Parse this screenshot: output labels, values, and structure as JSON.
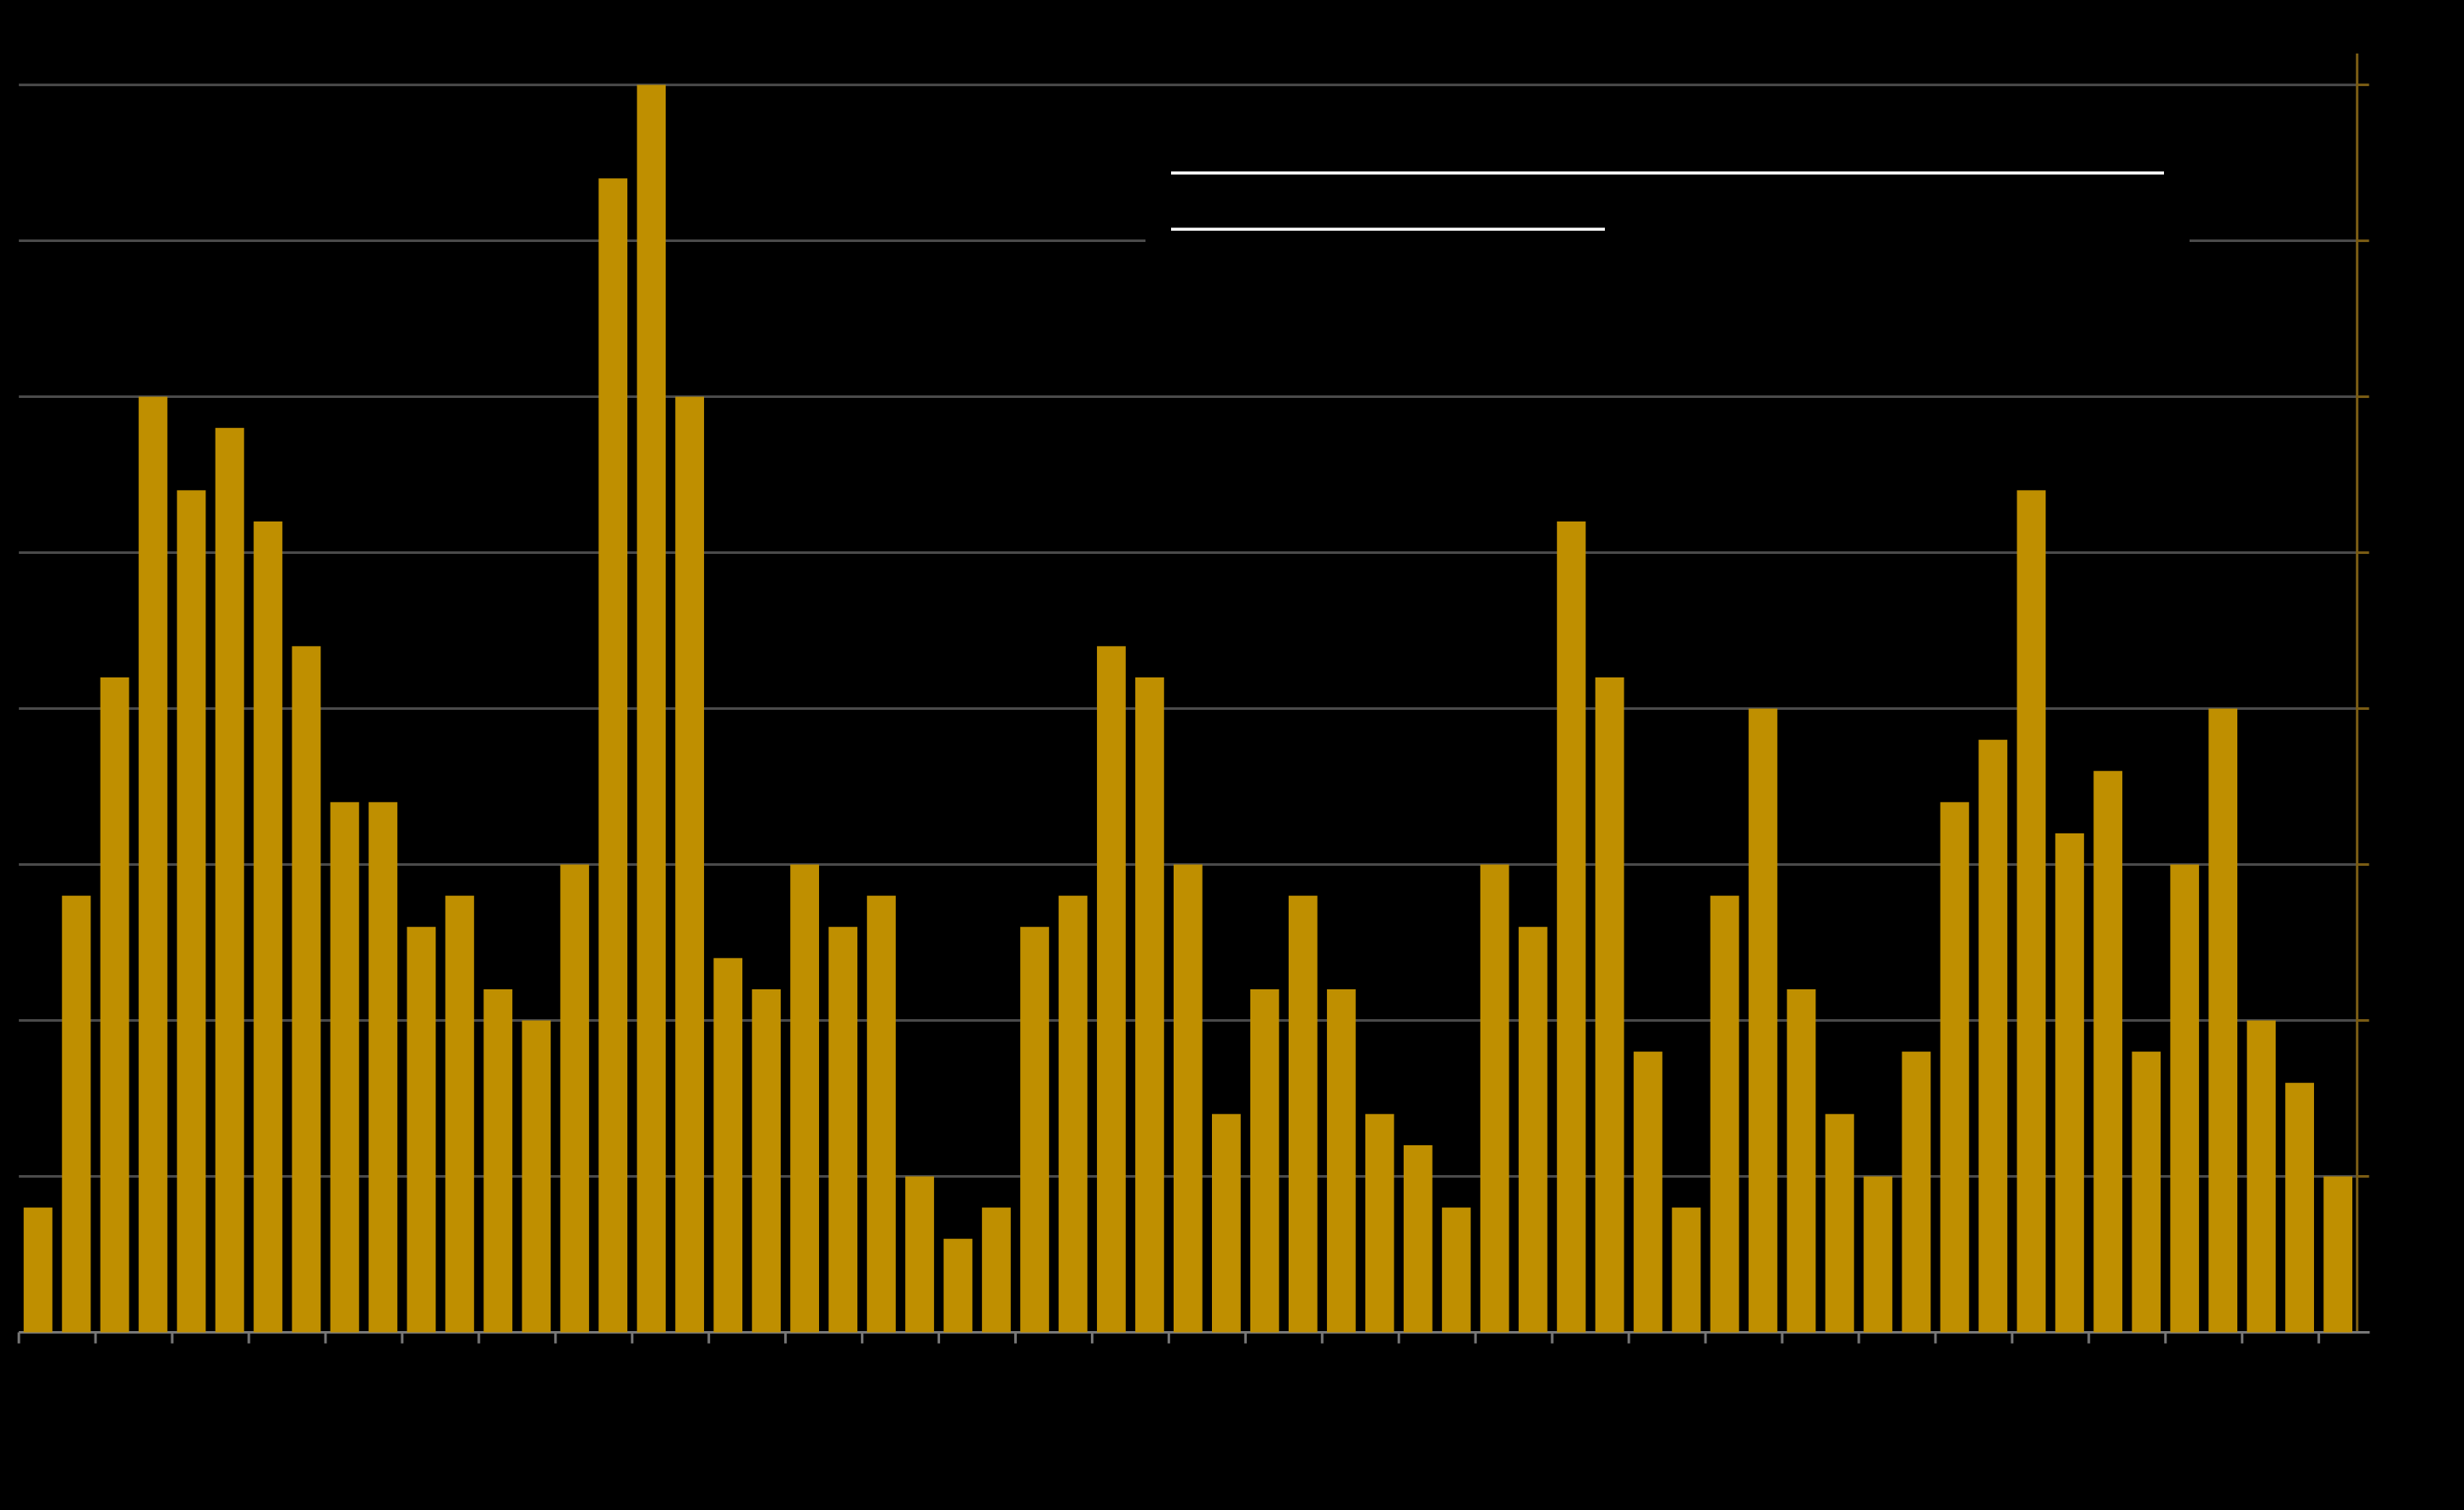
{
  "chart_data": {
    "type": "bar",
    "categories": [
      null,
      null,
      null,
      null,
      null,
      null,
      null,
      null,
      null,
      null,
      null,
      null,
      null,
      null,
      null,
      null,
      null,
      null,
      null,
      null,
      null,
      null,
      null,
      null,
      null,
      null,
      null,
      null,
      null,
      null,
      null,
      null,
      null,
      null,
      null,
      null,
      null,
      null,
      null,
      null,
      null,
      null,
      null,
      null,
      null,
      null,
      null,
      null,
      null,
      null,
      null,
      null,
      null,
      null,
      null,
      null,
      null,
      null,
      null,
      null,
      null
    ],
    "values": [
      0.8,
      2.8,
      4.2,
      6.0,
      5.4,
      5.8,
      5.2,
      4.4,
      3.4,
      3.4,
      2.6,
      2.8,
      2.2,
      2.0,
      3.0,
      7.4,
      8.0,
      6.0,
      2.4,
      2.2,
      3.0,
      2.6,
      2.8,
      1.0,
      0.6,
      0.8,
      2.6,
      2.8,
      4.4,
      4.2,
      3.0,
      1.4,
      2.2,
      2.8,
      2.2,
      1.4,
      1.2,
      0.8,
      3.0,
      2.6,
      5.2,
      4.2,
      1.8,
      0.8,
      2.8,
      4.0,
      2.2,
      1.4,
      1.0,
      1.8,
      3.4,
      3.8,
      5.4,
      3.2,
      3.6,
      1.8,
      3.0,
      4.0,
      2.0,
      1.6,
      1.0
    ],
    "color": "#bf8f00",
    "ylim": [
      0,
      8
    ],
    "yticks": [
      0,
      1,
      2,
      3,
      4,
      5,
      6,
      7,
      8
    ],
    "grid": true
  }
}
